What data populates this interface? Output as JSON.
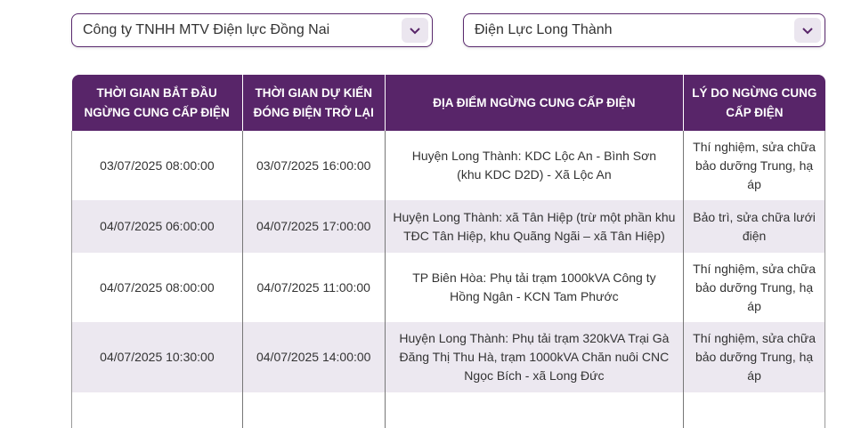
{
  "filters": {
    "company": "Công ty TNHH MTV Điện lực Đồng Nai",
    "branch": "Điện Lực Long Thành"
  },
  "table": {
    "headers": [
      "THỜI GIAN BẮT ĐẦU NGỪNG CUNG CẤP ĐIỆN",
      "THỜI GIAN DỰ KIẾN ĐÓNG ĐIỆN TRỞ LẠI",
      "ĐỊA ĐIỂM NGỪNG CUNG CẤP ĐIỆN",
      "LÝ DO NGỪNG CUNG CẤP ĐIỆN"
    ],
    "rows": [
      [
        "03/07/2025 08:00:00",
        "03/07/2025 16:00:00",
        "Huyện Long Thành: KDC Lộc An - Bình Sơn (khu KDC D2D) - Xã Lộc An",
        "Thí nghiệm, sửa chữa bảo dưỡng Trung, hạ áp"
      ],
      [
        "04/07/2025 06:00:00",
        "04/07/2025 17:00:00",
        "Huyện Long Thành: xã Tân Hiệp (trừ một phần khu TĐC Tân Hiệp, khu Quãng Ngãi – xã Tân Hiệp)",
        "Bảo trì, sửa chữa lưới điện"
      ],
      [
        "04/07/2025 08:00:00",
        "04/07/2025 11:00:00",
        "TP Biên Hòa: Phụ tải trạm 1000kVA Công ty Hồng Ngân - KCN Tam Phước",
        "Thí nghiệm, sửa chữa bảo dưỡng Trung, hạ áp"
      ],
      [
        "04/07/2025 10:30:00",
        "04/07/2025 14:00:00",
        "Huyện Long Thành: Phụ tải trạm 320kVA Trại Gà Đăng Thị Thu Hà, trạm 1000kVA Chăn nuôi CNC Ngọc Bích - xã Long Đức",
        "Thí nghiệm, sửa chữa bảo dưỡng Trung, hạ áp"
      ]
    ]
  },
  "colors": {
    "header": "#582569",
    "stripe": "#ece8f0"
  },
  "icons": {
    "dropdown": "chevron-down-icon"
  }
}
